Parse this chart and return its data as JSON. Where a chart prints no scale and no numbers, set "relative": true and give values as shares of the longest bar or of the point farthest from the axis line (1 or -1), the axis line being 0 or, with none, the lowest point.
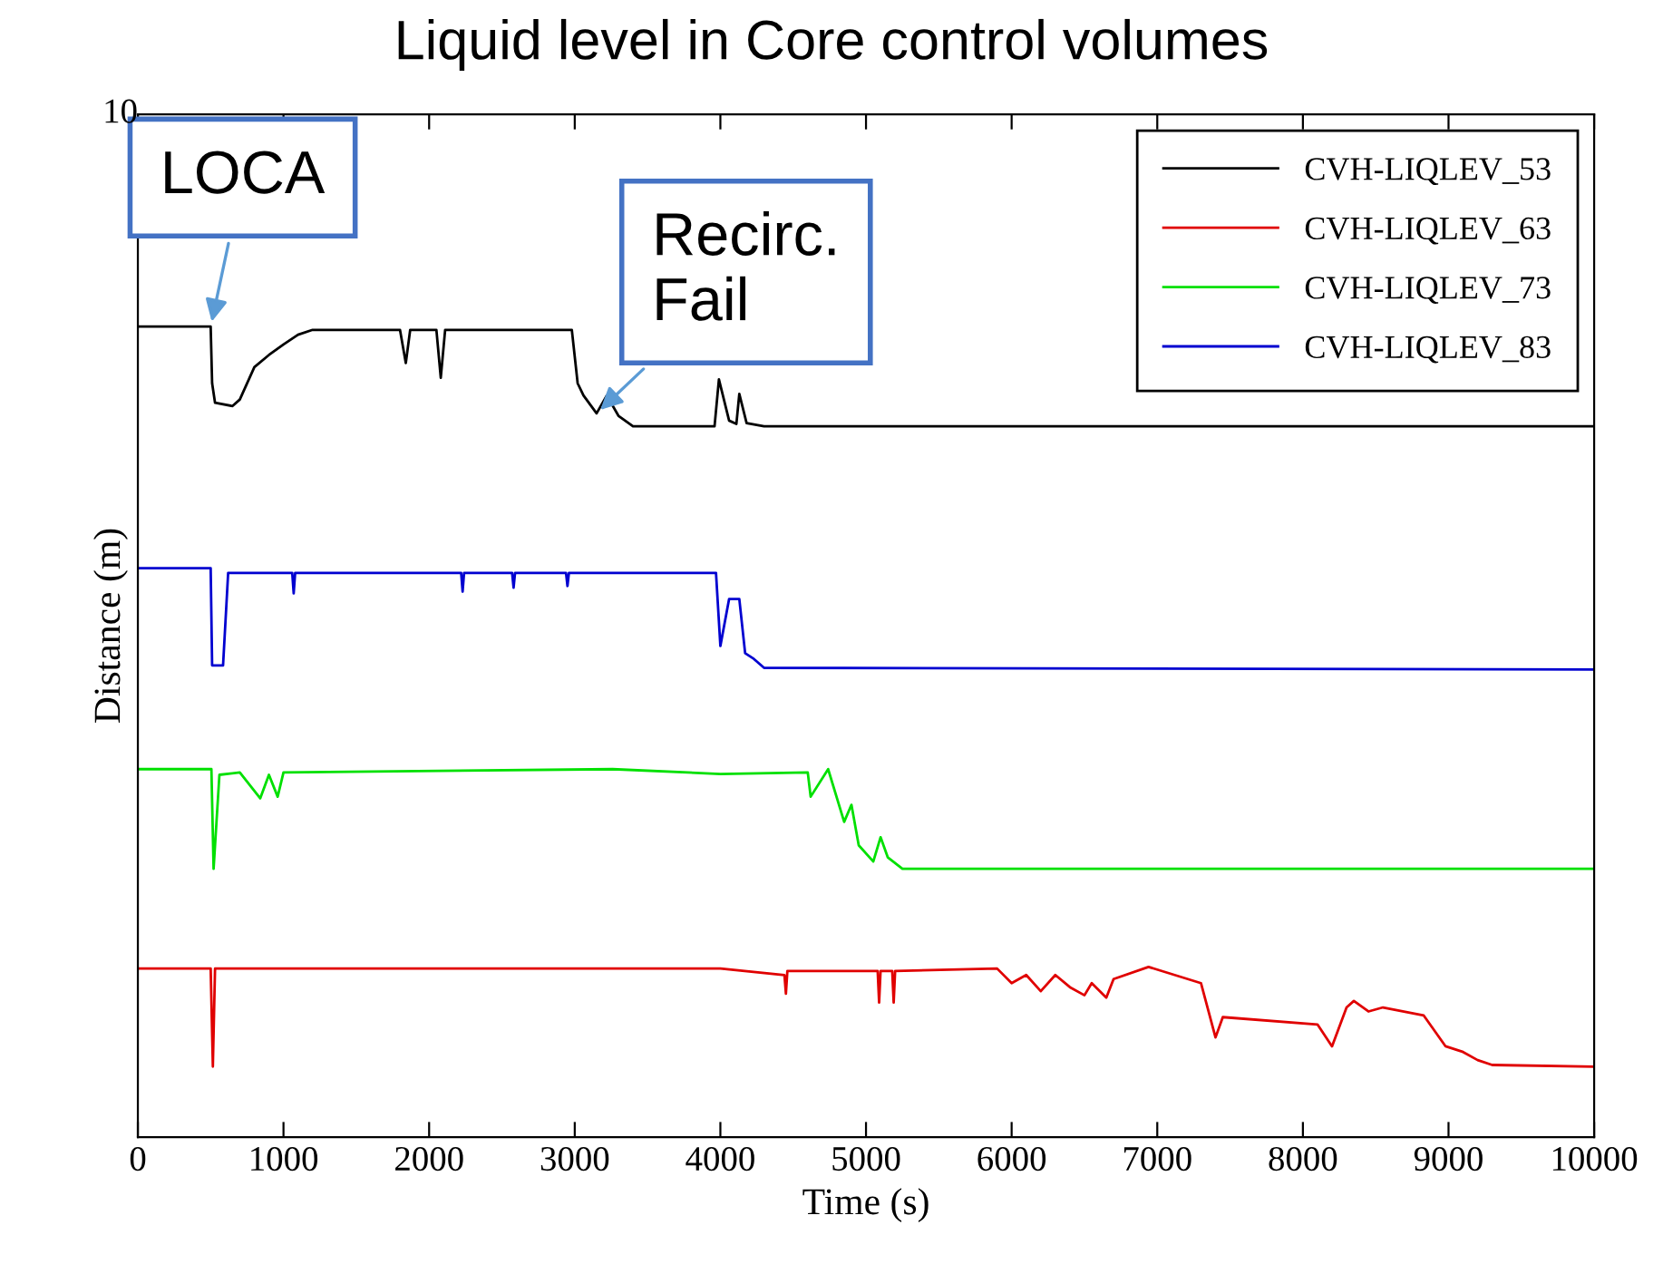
{
  "chart_data": {
    "type": "line",
    "title": "Liquid level in Core control volumes",
    "xlabel": "Time (s)",
    "ylabel": "Distance (m)",
    "relative": true,
    "xlim": [
      0,
      10000
    ],
    "xticks": [
      0,
      1000,
      2000,
      3000,
      4000,
      5000,
      6000,
      7000,
      8000,
      9000,
      10000
    ],
    "grid": false,
    "legend": "top right",
    "marker": "none",
    "line_style": "solid",
    "annotations": [
      {
        "text": "LOCA",
        "x": 500,
        "y": 1.0
      },
      {
        "text": "Recirc.\nFail",
        "x": 3150,
        "y": 0.893
      },
      "10"
    ],
    "series": [
      {
        "name": "CVH-LIQLEV_53",
        "color": "#000000",
        "x": [
          0,
          500,
          510,
          530,
          650,
          700,
          800,
          900,
          1000,
          1100,
          1200,
          1800,
          1840,
          1870,
          2050,
          2080,
          2110,
          2980,
          3020,
          3060,
          3150,
          3220,
          3300,
          3400,
          3960,
          3990,
          4060,
          4110,
          4130,
          4180,
          4300,
          10000
        ],
        "values": [
          1.0,
          1.0,
          0.93,
          0.906,
          0.902,
          0.91,
          0.95,
          0.965,
          0.978,
          0.99,
          0.996,
          0.996,
          0.955,
          0.996,
          0.996,
          0.937,
          0.996,
          0.996,
          0.93,
          0.915,
          0.893,
          0.915,
          0.89,
          0.877,
          0.877,
          0.935,
          0.884,
          0.88,
          0.917,
          0.881,
          0.877,
          0.877
        ]
      },
      {
        "name": "CVH-LIQLEV_63",
        "color": "#e00000",
        "x": [
          0,
          500,
          515,
          530,
          4000,
          4440,
          4450,
          4460,
          5080,
          5090,
          5100,
          5180,
          5190,
          5200,
          5900,
          6000,
          6100,
          6200,
          6300,
          6400,
          6500,
          6550,
          6650,
          6700,
          6940,
          7300,
          7400,
          7450,
          8100,
          8200,
          8300,
          8350,
          8450,
          8550,
          8830,
          8980,
          9100,
          9200,
          9300,
          10000
        ],
        "values": [
          0.208,
          0.208,
          0.087,
          0.208,
          0.208,
          0.2,
          0.177,
          0.205,
          0.205,
          0.166,
          0.205,
          0.205,
          0.166,
          0.205,
          0.208,
          0.19,
          0.2,
          0.18,
          0.2,
          0.185,
          0.175,
          0.19,
          0.172,
          0.195,
          0.21,
          0.19,
          0.123,
          0.148,
          0.139,
          0.112,
          0.16,
          0.168,
          0.155,
          0.16,
          0.15,
          0.112,
          0.105,
          0.095,
          0.089,
          0.087
        ]
      },
      {
        "name": "CVH-LIQLEV_73",
        "color": "#00e000",
        "x": [
          0,
          505,
          520,
          560,
          700,
          840,
          900,
          960,
          1000,
          3260,
          4000,
          4600,
          4620,
          4740,
          4850,
          4900,
          4950,
          5050,
          5100,
          5150,
          5250,
          10000
        ],
        "values": [
          0.454,
          0.454,
          0.331,
          0.447,
          0.45,
          0.418,
          0.447,
          0.42,
          0.45,
          0.454,
          0.448,
          0.45,
          0.42,
          0.454,
          0.389,
          0.41,
          0.36,
          0.34,
          0.37,
          0.345,
          0.331,
          0.331
        ]
      },
      {
        "name": "CVH-LIQLEV_83",
        "color": "#0000d0",
        "x": [
          0,
          500,
          510,
          585,
          620,
          1060,
          1070,
          1080,
          2220,
          2230,
          2240,
          2570,
          2580,
          2590,
          2940,
          2950,
          2960,
          3970,
          4000,
          4060,
          4130,
          4170,
          4230,
          4300,
          10000
        ],
        "values": [
          0.702,
          0.702,
          0.582,
          0.582,
          0.696,
          0.696,
          0.671,
          0.696,
          0.696,
          0.673,
          0.696,
          0.696,
          0.678,
          0.696,
          0.696,
          0.68,
          0.696,
          0.696,
          0.606,
          0.664,
          0.664,
          0.597,
          0.59,
          0.579,
          0.577
        ]
      }
    ]
  }
}
